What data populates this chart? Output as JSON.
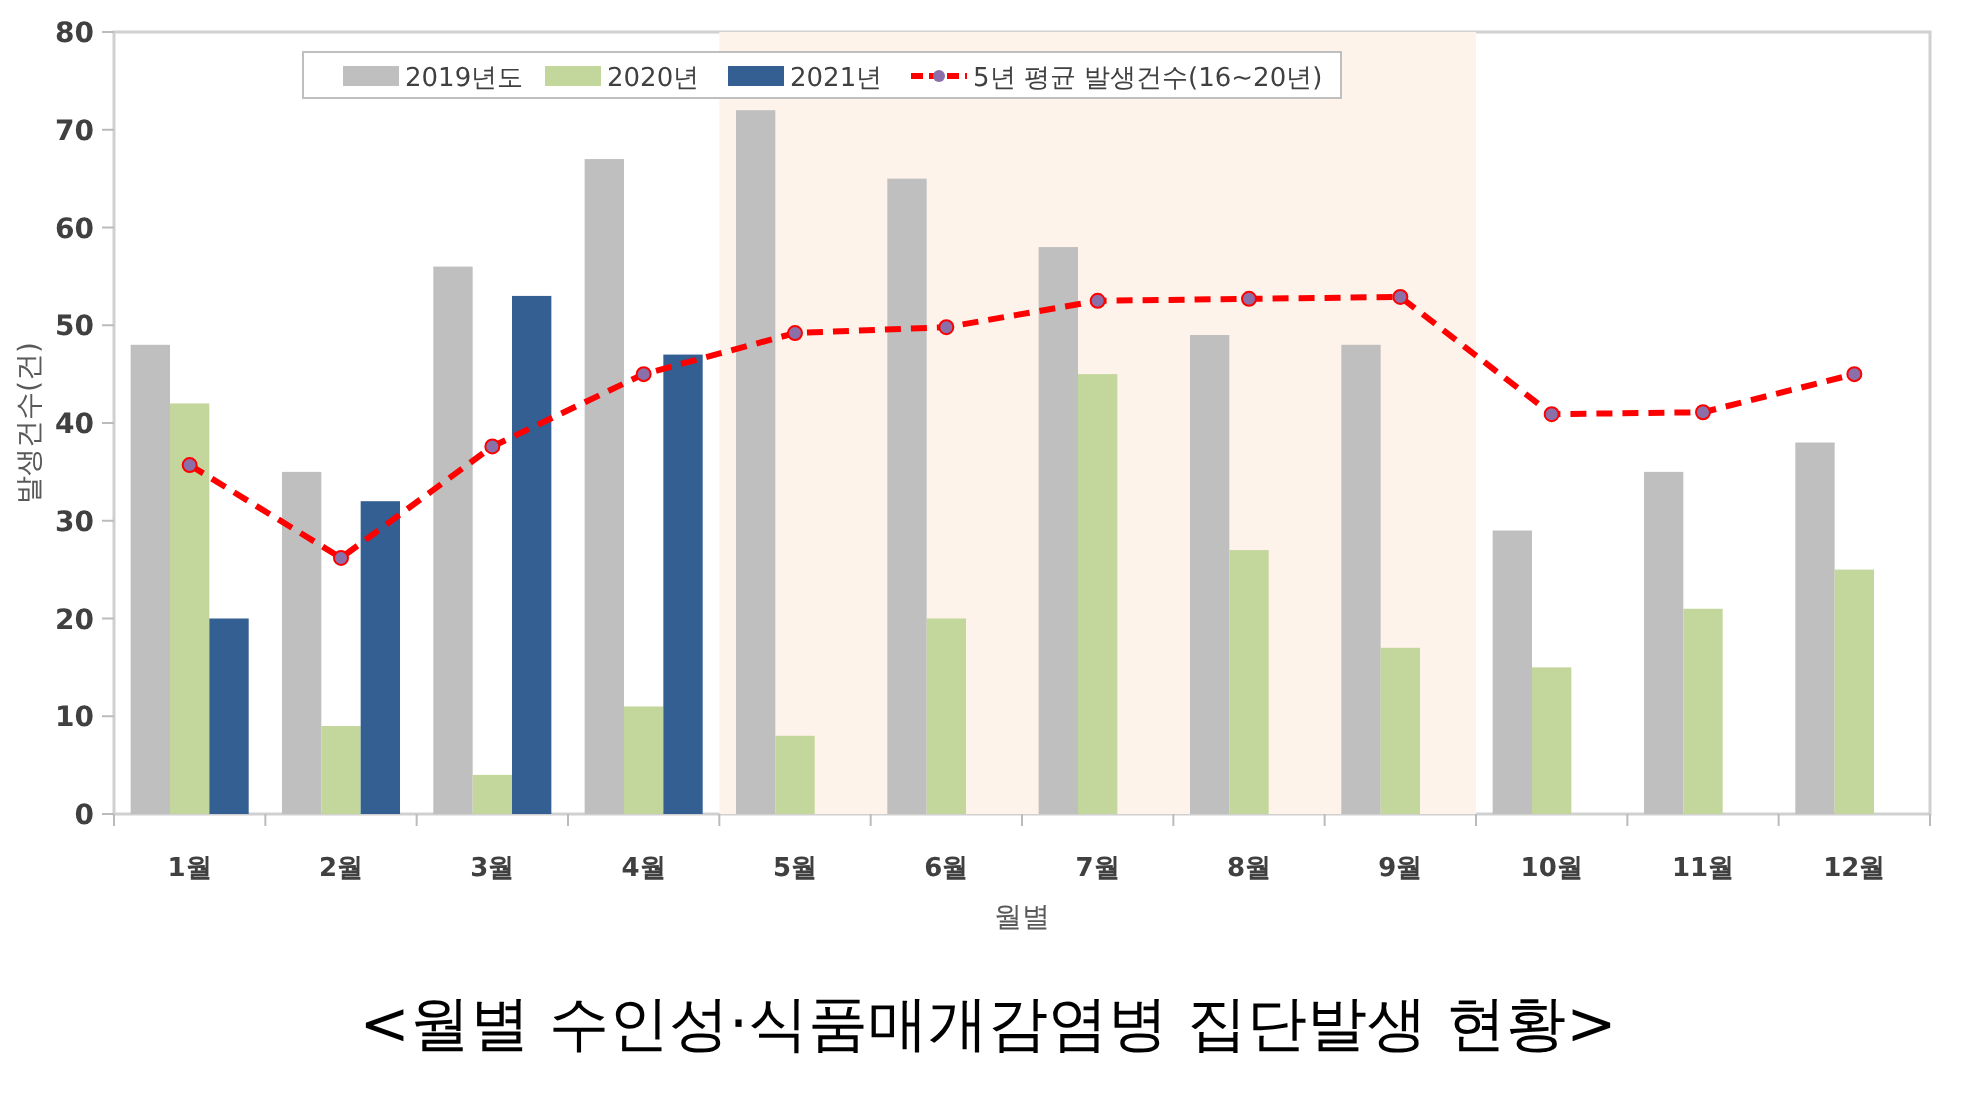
{
  "chart_data": {
    "type": "bar",
    "title": "<월별 수인성·식품매개감염병 집단발생 현황>",
    "xlabel": "월별",
    "ylabel": "발생건수(건)",
    "categories": [
      "1월",
      "2월",
      "3월",
      "4월",
      "5월",
      "6월",
      "7월",
      "8월",
      "9월",
      "10월",
      "11월",
      "12월"
    ],
    "series": [
      {
        "name": "2019년도",
        "color": "#bfbfbf",
        "values": [
          48,
          35,
          56,
          67,
          72,
          65,
          58,
          49,
          48,
          29,
          35,
          38
        ]
      },
      {
        "name": "2020년",
        "color": "#c3d69b",
        "values": [
          42,
          9,
          4,
          11,
          8,
          20,
          45,
          27,
          17,
          15,
          21,
          25
        ]
      },
      {
        "name": "2021년",
        "color": "#335f93",
        "values": [
          20,
          32,
          53,
          47,
          null,
          null,
          null,
          null,
          null,
          null,
          null,
          null
        ]
      },
      {
        "name": "5년 평균 발생건수(16~20년)",
        "type": "line",
        "color": "#ff0000",
        "line_style": "dashed",
        "marker": "circle",
        "values": [
          35.7,
          26.2,
          37.6,
          45,
          49.2,
          49.8,
          52.5,
          52.7,
          52.9,
          40.9,
          41.1,
          45
        ]
      }
    ],
    "ylim": [
      0,
      80
    ],
    "yticks": [
      0,
      10,
      20,
      30,
      40,
      50,
      60,
      70,
      80
    ],
    "bands": [
      {
        "axis": "x",
        "from": "5월",
        "to": "9월",
        "color": "#fdf3ea"
      }
    ],
    "legend": "top",
    "grid": false
  }
}
